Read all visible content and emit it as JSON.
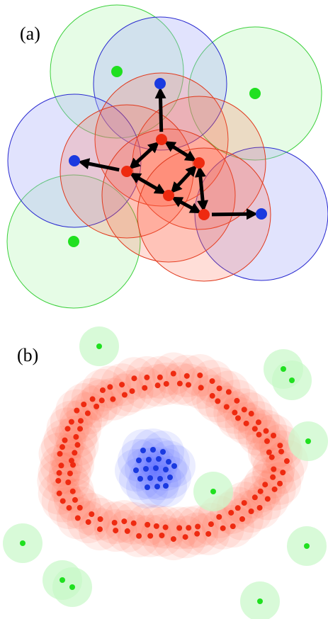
{
  "panels": {
    "a": {
      "label": "(a)"
    },
    "b": {
      "label": "(b)"
    }
  },
  "colors": {
    "red_stroke": "#e03a1e",
    "red_fill": "#ff5a3c",
    "red_dot": "#ee2a10",
    "blue_stroke": "#2a2ad0",
    "blue_fill": "#aab0f8",
    "blue_dot": "#1a3ae0",
    "green_stroke": "#3cd03c",
    "green_fill": "#c8f8c8",
    "green_dot": "#20e020",
    "arrow": "#000000"
  },
  "icons": [
    "double-headed-arrow",
    "single-headed-arrow"
  ]
}
